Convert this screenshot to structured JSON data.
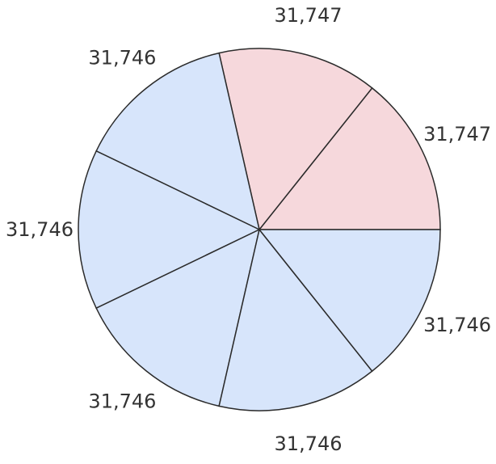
{
  "chart_data": {
    "type": "pie",
    "title": "",
    "start_angle_deg": 0,
    "direction": "counterclockwise",
    "slices": [
      {
        "value": 31747,
        "label": "31,747",
        "color": "#f6d8dc"
      },
      {
        "value": 31747,
        "label": "31,747",
        "color": "#f6d8dc"
      },
      {
        "value": 31746,
        "label": "31,746",
        "color": "#d7e5fb"
      },
      {
        "value": 31746,
        "label": "31,746",
        "color": "#d7e5fb"
      },
      {
        "value": 31746,
        "label": "31,746",
        "color": "#d7e5fb"
      },
      {
        "value": 31746,
        "label": "31,746",
        "color": "#d7e5fb"
      },
      {
        "value": 31746,
        "label": "31,746",
        "color": "#d7e5fb"
      }
    ],
    "legend": "none"
  }
}
